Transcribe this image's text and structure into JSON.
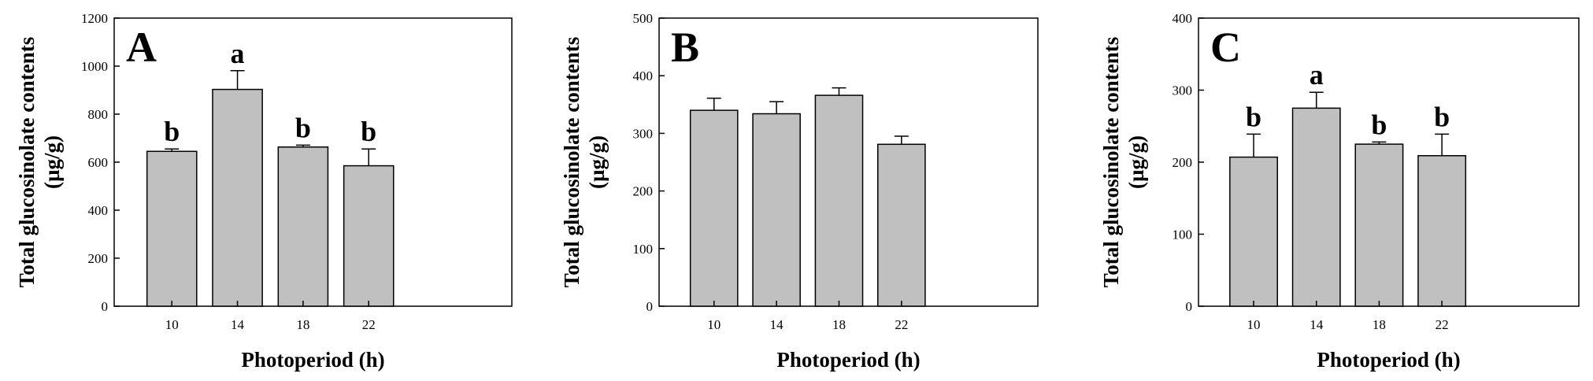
{
  "chart_data": [
    {
      "type": "bar",
      "panel_label": "A",
      "categories": [
        "10",
        "14",
        "18",
        "22"
      ],
      "values": [
        645,
        903,
        663,
        585
      ],
      "errors": [
        10,
        78,
        8,
        70
      ],
      "significance": [
        "b",
        "a",
        "b",
        "b"
      ],
      "xlabel": "Photoperiod (h)",
      "ylabel": "Total glucosinolate contents",
      "ylabel_unit": "(µg/g)",
      "ylim": [
        0,
        1200
      ],
      "yticks": [
        0,
        200,
        400,
        600,
        800,
        1000,
        1200
      ],
      "grid": false,
      "bar_color": "#c0c0c0"
    },
    {
      "type": "bar",
      "panel_label": "B",
      "categories": [
        "10",
        "14",
        "18",
        "22"
      ],
      "values": [
        340,
        334,
        366,
        281
      ],
      "errors": [
        21,
        21,
        13,
        14
      ],
      "significance": [
        "",
        "",
        "",
        ""
      ],
      "xlabel": "Photoperiod (h)",
      "ylabel": "Total glucosinolate contents",
      "ylabel_unit": "(µg/g)",
      "ylim": [
        0,
        500
      ],
      "yticks": [
        0,
        100,
        200,
        300,
        400,
        500
      ],
      "grid": false,
      "bar_color": "#c0c0c0"
    },
    {
      "type": "bar",
      "panel_label": "C",
      "categories": [
        "10",
        "14",
        "18",
        "22"
      ],
      "values": [
        207,
        275,
        225,
        209
      ],
      "errors": [
        32,
        22,
        3,
        30
      ],
      "significance": [
        "b",
        "a",
        "b",
        "b"
      ],
      "xlabel": "Photoperiod (h)",
      "ylabel": "Total glucosinolate contents",
      "ylabel_unit": "(µg/g)",
      "ylim": [
        0,
        400
      ],
      "yticks": [
        0,
        100,
        200,
        300,
        400
      ],
      "grid": false,
      "bar_color": "#c0c0c0"
    }
  ]
}
